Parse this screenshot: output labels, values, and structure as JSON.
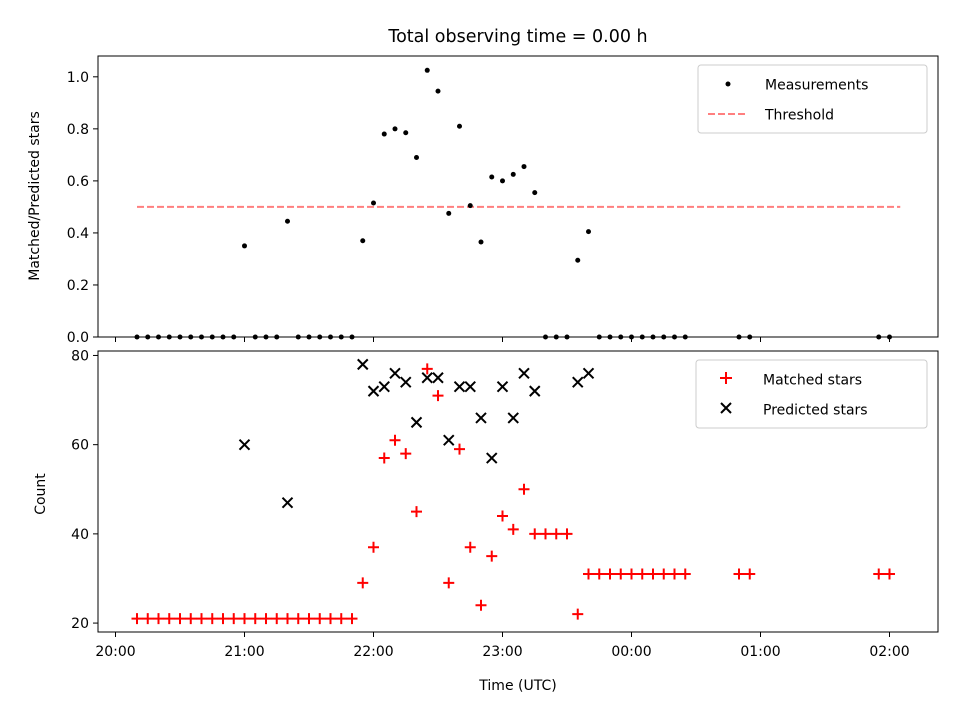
{
  "chart_data": [
    {
      "type": "scatter",
      "title": "Total observing time = 0.00 h",
      "ylabel": "Matched/Predicted stars",
      "xlabel": "",
      "ylim": [
        0,
        1.08
      ],
      "yticks": [
        "0.0",
        "0.2",
        "0.4",
        "0.6",
        "0.8",
        "1.0"
      ],
      "grid": false,
      "legend_position": "upper right",
      "legend": [
        {
          "label": "Measurements",
          "marker": "dot",
          "color": "#000000"
        },
        {
          "label": "Threshold",
          "marker": "dashed-line",
          "color": "#ff7f7f"
        }
      ],
      "threshold": {
        "value": 0.5,
        "x_start": "20:10",
        "x_end": "02:05"
      },
      "series": [
        {
          "name": "Measurements",
          "color": "#000000",
          "points": [
            [
              "20:10",
              0
            ],
            [
              "20:15",
              0
            ],
            [
              "20:20",
              0
            ],
            [
              "20:25",
              0
            ],
            [
              "20:30",
              0
            ],
            [
              "20:35",
              0
            ],
            [
              "20:40",
              0
            ],
            [
              "20:45",
              0
            ],
            [
              "20:50",
              0
            ],
            [
              "20:55",
              0
            ],
            [
              "21:00",
              0.35
            ],
            [
              "21:05",
              0
            ],
            [
              "21:10",
              0
            ],
            [
              "21:15",
              0
            ],
            [
              "21:20",
              0.445
            ],
            [
              "21:25",
              0
            ],
            [
              "21:30",
              0
            ],
            [
              "21:35",
              0
            ],
            [
              "21:40",
              0
            ],
            [
              "21:45",
              0
            ],
            [
              "21:50",
              0
            ],
            [
              "21:55",
              0.37
            ],
            [
              "22:00",
              0.515
            ],
            [
              "22:05",
              0.78
            ],
            [
              "22:10",
              0.8
            ],
            [
              "22:15",
              0.785
            ],
            [
              "22:20",
              0.69
            ],
            [
              "22:25",
              1.025
            ],
            [
              "22:30",
              0.945
            ],
            [
              "22:35",
              0.475
            ],
            [
              "22:40",
              0.81
            ],
            [
              "22:45",
              0.505
            ],
            [
              "22:50",
              0.365
            ],
            [
              "22:55",
              0.615
            ],
            [
              "23:00",
              0.6
            ],
            [
              "23:05",
              0.625
            ],
            [
              "23:10",
              0.655
            ],
            [
              "23:15",
              0.555
            ],
            [
              "23:20",
              0
            ],
            [
              "23:25",
              0
            ],
            [
              "23:30",
              0
            ],
            [
              "23:35",
              0.295
            ],
            [
              "23:40",
              0.405
            ],
            [
              "23:45",
              0
            ],
            [
              "23:50",
              0
            ],
            [
              "23:55",
              0
            ],
            [
              "00:00",
              0
            ],
            [
              "00:05",
              0
            ],
            [
              "00:10",
              0
            ],
            [
              "00:15",
              0
            ],
            [
              "00:20",
              0
            ],
            [
              "00:25",
              0
            ],
            [
              "00:50",
              0
            ],
            [
              "00:55",
              0
            ],
            [
              "01:55",
              0
            ],
            [
              "02:00",
              0
            ]
          ]
        }
      ]
    },
    {
      "type": "scatter",
      "title": "",
      "xlabel": "Time (UTC)",
      "ylabel": "Count",
      "ylim": [
        18,
        81
      ],
      "yticks": [
        "20",
        "40",
        "60",
        "80"
      ],
      "xticks": [
        "20:00",
        "21:00",
        "22:00",
        "23:00",
        "00:00",
        "01:00",
        "02:00"
      ],
      "grid": false,
      "legend_position": "upper right",
      "series": [
        {
          "name": "Matched stars",
          "marker": "plus",
          "color": "#ff0000",
          "points": [
            [
              "20:10",
              21
            ],
            [
              "20:15",
              21
            ],
            [
              "20:20",
              21
            ],
            [
              "20:25",
              21
            ],
            [
              "20:30",
              21
            ],
            [
              "20:35",
              21
            ],
            [
              "20:40",
              21
            ],
            [
              "20:45",
              21
            ],
            [
              "20:50",
              21
            ],
            [
              "20:55",
              21
            ],
            [
              "21:00",
              21
            ],
            [
              "21:05",
              21
            ],
            [
              "21:10",
              21
            ],
            [
              "21:15",
              21
            ],
            [
              "21:20",
              21
            ],
            [
              "21:25",
              21
            ],
            [
              "21:30",
              21
            ],
            [
              "21:35",
              21
            ],
            [
              "21:40",
              21
            ],
            [
              "21:45",
              21
            ],
            [
              "21:50",
              21
            ],
            [
              "21:55",
              29
            ],
            [
              "22:00",
              37
            ],
            [
              "22:05",
              57
            ],
            [
              "22:10",
              61
            ],
            [
              "22:15",
              58
            ],
            [
              "22:20",
              45
            ],
            [
              "22:25",
              77
            ],
            [
              "22:30",
              71
            ],
            [
              "22:35",
              29
            ],
            [
              "22:40",
              59
            ],
            [
              "22:45",
              37
            ],
            [
              "22:50",
              24
            ],
            [
              "22:55",
              35
            ],
            [
              "23:00",
              44
            ],
            [
              "23:05",
              41
            ],
            [
              "23:10",
              50
            ],
            [
              "23:15",
              40
            ],
            [
              "23:20",
              40
            ],
            [
              "23:25",
              40
            ],
            [
              "23:30",
              40
            ],
            [
              "23:35",
              22
            ],
            [
              "23:40",
              31
            ],
            [
              "23:45",
              31
            ],
            [
              "23:50",
              31
            ],
            [
              "23:55",
              31
            ],
            [
              "00:00",
              31
            ],
            [
              "00:05",
              31
            ],
            [
              "00:10",
              31
            ],
            [
              "00:15",
              31
            ],
            [
              "00:20",
              31
            ],
            [
              "00:25",
              31
            ],
            [
              "00:50",
              31
            ],
            [
              "00:55",
              31
            ],
            [
              "01:55",
              31
            ],
            [
              "02:00",
              31
            ]
          ]
        },
        {
          "name": "Predicted stars",
          "marker": "x",
          "color": "#000000",
          "points": [
            [
              "21:00",
              60
            ],
            [
              "21:20",
              47
            ],
            [
              "21:55",
              78
            ],
            [
              "22:00",
              72
            ],
            [
              "22:05",
              73
            ],
            [
              "22:10",
              76
            ],
            [
              "22:15",
              74
            ],
            [
              "22:20",
              65
            ],
            [
              "22:25",
              75
            ],
            [
              "22:30",
              75
            ],
            [
              "22:35",
              61
            ],
            [
              "22:40",
              73
            ],
            [
              "22:45",
              73
            ],
            [
              "22:50",
              66
            ],
            [
              "22:55",
              57
            ],
            [
              "23:00",
              73
            ],
            [
              "23:05",
              66
            ],
            [
              "23:10",
              76
            ],
            [
              "23:15",
              72
            ],
            [
              "23:35",
              74
            ],
            [
              "23:40",
              76
            ]
          ]
        }
      ]
    }
  ]
}
